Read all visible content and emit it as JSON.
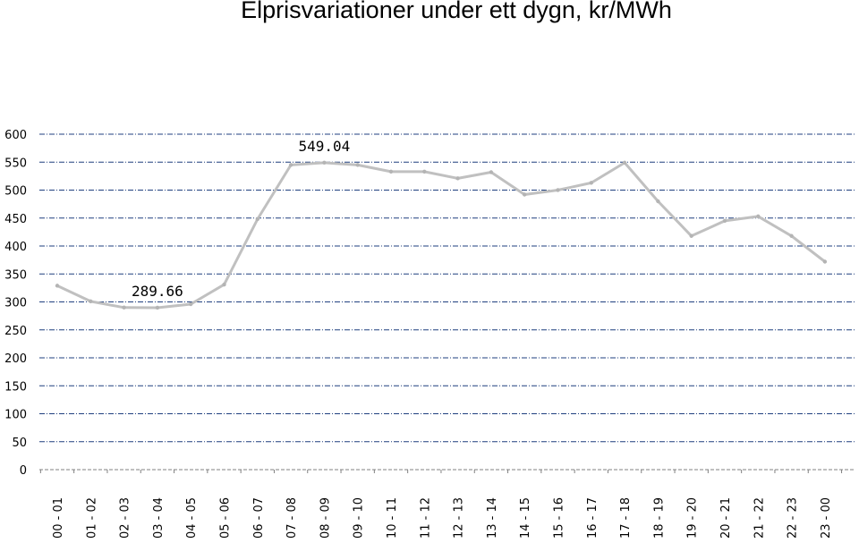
{
  "chart_data": {
    "type": "line",
    "title": "Elprisvariationer under ett dygn, kr/MWh",
    "xlabel": "",
    "ylabel": "",
    "ylim": [
      0,
      600
    ],
    "yticks": [
      "0",
      "50",
      "100",
      "150",
      "200",
      "250",
      "300",
      "350",
      "400",
      "450",
      "500",
      "550",
      "600"
    ],
    "grid": true,
    "legend": "none",
    "categories": [
      "00 - 01",
      "01 - 02",
      "02 - 03",
      "03 - 04",
      "04 - 05",
      "05 - 06",
      "06 - 07",
      "07 - 08",
      "08 - 09",
      "09 - 10",
      "10 - 11",
      "11 - 12",
      "12 - 13",
      "13 - 14",
      "14 - 15",
      "15 - 16",
      "16 - 17",
      "17 - 18",
      "18 - 19",
      "19 - 20",
      "20 - 21",
      "21 - 22",
      "22 - 23",
      "23 - 00"
    ],
    "series": [
      {
        "values": [
          329,
          301,
          290,
          289.66,
          296,
          331,
          448,
          545,
          549.04,
          545,
          533,
          533,
          521,
          532,
          492,
          500,
          513,
          549,
          480,
          418,
          445,
          453,
          418,
          372
        ]
      }
    ],
    "annotations": [
      {
        "index": 3,
        "text": "289.66"
      },
      {
        "index": 8,
        "text": "549.04"
      }
    ],
    "colors": {
      "line": "#c0c0c0",
      "grid": "#1f3f7f",
      "axis": "#808080"
    }
  }
}
